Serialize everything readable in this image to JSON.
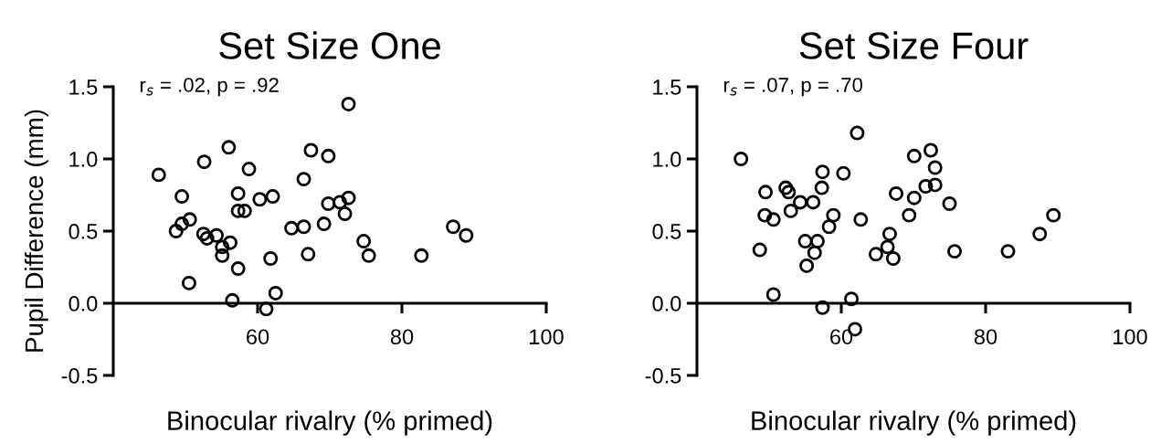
{
  "chart_data": [
    {
      "type": "scatter",
      "title": "Set Size One",
      "xlabel": "Binocular rivalry (% primed)",
      "ylabel": "Pupil Difference (mm)",
      "annotations": [
        "r$_{s}$ = .02, p = .92"
      ],
      "xlim": [
        40,
        100
      ],
      "xticks": [
        60,
        80,
        100
      ],
      "ylim": [
        -0.5,
        1.5
      ],
      "yticks": [
        {
          "value": -0.5,
          "label": "-0.5"
        },
        {
          "value": 0,
          "label": "0.0"
        },
        {
          "value": 0.5,
          "label": "0.5"
        },
        {
          "value": 1.0,
          "label": "1.0"
        },
        {
          "value": 1.5,
          "label": "1.5"
        }
      ],
      "marker": "circle",
      "grid": false,
      "legend": false,
      "series": [
        {
          "color": "#000000",
          "x": [
            72.6,
            56.0,
            67.4,
            69.8,
            52.6,
            46.3,
            58.8,
            66.4,
            49.5,
            57.3,
            60.3,
            62.1,
            72.6,
            69.8,
            71.4,
            57.3,
            58.2,
            72.1,
            50.6,
            49.5,
            48.7,
            52.5,
            53.0,
            54.3,
            55.1,
            56.2,
            55.1,
            64.7,
            66.4,
            69.2,
            74.7,
            75.4,
            67.0,
            61.8,
            57.3,
            50.5,
            56.5,
            62.5,
            61.2,
            82.7,
            87.1,
            88.9
          ],
          "values": [
            1.38,
            1.08,
            1.06,
            1.02,
            0.98,
            0.89,
            0.93,
            0.86,
            0.74,
            0.76,
            0.72,
            0.74,
            0.73,
            0.69,
            0.7,
            0.64,
            0.64,
            0.62,
            0.58,
            0.55,
            0.5,
            0.48,
            0.45,
            0.47,
            0.39,
            0.42,
            0.33,
            0.52,
            0.53,
            0.55,
            0.43,
            0.33,
            0.34,
            0.31,
            0.24,
            0.14,
            0.02,
            0.07,
            -0.04,
            0.33,
            0.53,
            0.47
          ]
        }
      ]
    },
    {
      "type": "scatter",
      "title": "Set Size Four",
      "xlabel": "Binocular rivalry (% primed)",
      "annotations": [
        "r$_{s}$ = .07, p = .70"
      ],
      "xlim": [
        40,
        100
      ],
      "xticks": [
        60,
        80,
        100
      ],
      "ylim": [
        -0.5,
        1.5
      ],
      "yticks": [
        {
          "value": -0.5,
          "label": "-0.5"
        },
        {
          "value": 0,
          "label": "0.0"
        },
        {
          "value": 0.5,
          "label": "0.5"
        },
        {
          "value": 1.0,
          "label": "1.0"
        },
        {
          "value": 1.5,
          "label": "1.5"
        }
      ],
      "marker": "circle",
      "grid": false,
      "legend": false,
      "series": [
        {
          "color": "#000000",
          "x": [
            46.1,
            62.2,
            70.1,
            72.4,
            73.0,
            57.4,
            60.3,
            49.5,
            52.3,
            52.7,
            57.3,
            54.3,
            56.1,
            53.0,
            67.6,
            70.1,
            71.7,
            73.0,
            75.0,
            49.4,
            50.6,
            58.9,
            58.3,
            62.7,
            69.4,
            48.7,
            55.0,
            56.7,
            56.3,
            55.2,
            64.8,
            66.4,
            66.7,
            67.2,
            75.7,
            83.1,
            87.5,
            89.4,
            50.6,
            61.4,
            57.4,
            61.9
          ],
          "values": [
            1.0,
            1.18,
            1.02,
            1.06,
            0.94,
            0.91,
            0.9,
            0.77,
            0.8,
            0.77,
            0.8,
            0.7,
            0.7,
            0.64,
            0.76,
            0.73,
            0.81,
            0.82,
            0.69,
            0.61,
            0.58,
            0.61,
            0.53,
            0.58,
            0.61,
            0.37,
            0.43,
            0.43,
            0.35,
            0.26,
            0.34,
            0.39,
            0.48,
            0.31,
            0.36,
            0.36,
            0.48,
            0.61,
            0.06,
            0.03,
            -0.03,
            -0.18
          ]
        }
      ]
    }
  ]
}
